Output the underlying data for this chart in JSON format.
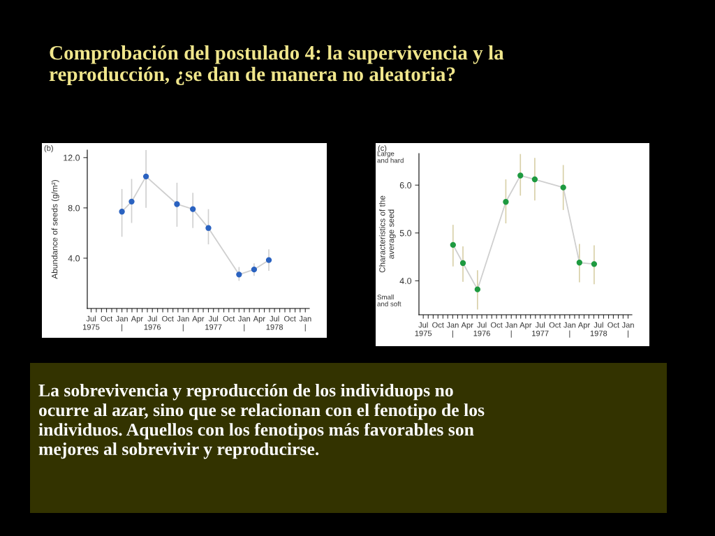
{
  "chart_data": [
    {
      "type": "line",
      "title": "(b)",
      "ylabel": "Abundance of seeds (g/m²)",
      "marker": "circle",
      "grid": false,
      "legend": false,
      "x": [
        "1976-01-01",
        "1976-02-28",
        "1976-05-24",
        "1976-11-25",
        "1977-02-28",
        "1977-06-01",
        "1977-12-01",
        "1978-03-01",
        "1978-05-28"
      ],
      "series": [
        {
          "color": "#2a62c0",
          "values": [
            7.7,
            8.5,
            10.5,
            8.3,
            7.9,
            6.4,
            2.7,
            3.1,
            3.85
          ],
          "errors": [
            [
              5.7,
              9.5
            ],
            [
              6.8,
              10.3
            ],
            [
              8.0,
              12.6
            ],
            [
              6.5,
              10.0
            ],
            [
              6.4,
              9.2
            ],
            [
              5.1,
              7.9
            ],
            [
              2.2,
              3.3
            ],
            [
              2.6,
              3.6
            ],
            [
              3.0,
              4.7
            ]
          ]
        }
      ],
      "xlim": [
        "1975-06-08",
        "1979-01-25"
      ],
      "ylim": [
        0,
        12.6
      ],
      "yticks": [
        {
          "value": 4,
          "label": "4.0"
        },
        {
          "value": 8,
          "label": "8.0"
        },
        {
          "value": 12,
          "label": "12.0"
        }
      ],
      "xticks": [
        {
          "value": "1975-07",
          "label": "Jul\n1975"
        },
        {
          "value": "1975-08",
          "label": null
        },
        {
          "value": "1975-09",
          "label": null
        },
        {
          "value": "1975-10",
          "label": "Oct"
        },
        {
          "value": "1975-11",
          "label": null
        },
        {
          "value": "1975-12",
          "label": null
        },
        {
          "value": "1976-01",
          "label": "Jan\n|"
        },
        {
          "value": "1976-02",
          "label": null
        },
        {
          "value": "1976-03",
          "label": null
        },
        {
          "value": "1976-04",
          "label": "Apr"
        },
        {
          "value": "1976-05",
          "label": null
        },
        {
          "value": "1976-06",
          "label": null
        },
        {
          "value": "1976-07",
          "label": "Jul\n1976"
        },
        {
          "value": "1976-08",
          "label": null
        },
        {
          "value": "1976-09",
          "label": null
        },
        {
          "value": "1976-10",
          "label": "Oct"
        },
        {
          "value": "1976-11",
          "label": null
        },
        {
          "value": "1976-12",
          "label": null
        },
        {
          "value": "1977-01",
          "label": "Jan\n|"
        },
        {
          "value": "1977-02",
          "label": null
        },
        {
          "value": "1977-03",
          "label": null
        },
        {
          "value": "1977-04",
          "label": "Apr"
        },
        {
          "value": "1977-05",
          "label": null
        },
        {
          "value": "1977-06",
          "label": null
        },
        {
          "value": "1977-07",
          "label": "Jul\n1977"
        },
        {
          "value": "1977-08",
          "label": null
        },
        {
          "value": "1977-09",
          "label": null
        },
        {
          "value": "1977-10",
          "label": "Oct"
        },
        {
          "value": "1977-11",
          "label": null
        },
        {
          "value": "1977-12",
          "label": null
        },
        {
          "value": "1978-01",
          "label": "Jan\n|"
        },
        {
          "value": "1978-02",
          "label": null
        },
        {
          "value": "1978-03",
          "label": null
        },
        {
          "value": "1978-04",
          "label": "Apr"
        },
        {
          "value": "1978-05",
          "label": null
        },
        {
          "value": "1978-06",
          "label": null
        },
        {
          "value": "1978-07",
          "label": "Jul\n1978"
        },
        {
          "value": "1978-08",
          "label": null
        },
        {
          "value": "1978-09",
          "label": null
        },
        {
          "value": "1978-10",
          "label": "Oct"
        },
        {
          "value": "1978-11",
          "label": null
        },
        {
          "value": "1978-12",
          "label": null
        },
        {
          "value": "1979-01",
          "label": "Jan\n|"
        }
      ]
    },
    {
      "type": "line",
      "title": "(c)",
      "ylabel": "Characteristics of the\naverage seed",
      "marker": "circle",
      "grid": false,
      "legend": false,
      "annotations": [
        "Large\nand hard",
        "Small\nand soft"
      ],
      "x": [
        "1976-01-03",
        "1976-03-05",
        "1976-06-04",
        "1976-11-28",
        "1977-02-27",
        "1977-05-28",
        "1977-11-22",
        "1978-03-03",
        "1978-06-03"
      ],
      "series": [
        {
          "color": "#1e9a40",
          "values": [
            4.75,
            4.37,
            3.82,
            5.65,
            6.2,
            6.12,
            5.95,
            4.38,
            4.35
          ],
          "errors": [
            [
              4.3,
              5.17
            ],
            [
              3.98,
              4.72
            ],
            [
              3.4,
              4.22
            ],
            [
              5.2,
              6.12
            ],
            [
              5.78,
              6.65
            ],
            [
              5.68,
              6.57
            ],
            [
              5.48,
              6.42
            ],
            [
              3.97,
              4.77
            ],
            [
              3.93,
              4.74
            ]
          ]
        }
      ],
      "xlim": [
        "1975-06-04",
        "1979-01-25"
      ],
      "ylim": [
        3.29,
        6.66
      ],
      "yticks": [
        {
          "value": 4,
          "label": "4.0"
        },
        {
          "value": 5,
          "label": "5.0"
        },
        {
          "value": 6,
          "label": "6.0"
        }
      ],
      "xticks": [
        {
          "value": "1975-07",
          "label": "Jul\n1975"
        },
        {
          "value": "1975-08",
          "label": null
        },
        {
          "value": "1975-09",
          "label": null
        },
        {
          "value": "1975-10",
          "label": "Oct"
        },
        {
          "value": "1975-11",
          "label": null
        },
        {
          "value": "1975-12",
          "label": null
        },
        {
          "value": "1976-01",
          "label": "Jan\n|"
        },
        {
          "value": "1976-02",
          "label": null
        },
        {
          "value": "1976-03",
          "label": null
        },
        {
          "value": "1976-04",
          "label": "Apr"
        },
        {
          "value": "1976-05",
          "label": null
        },
        {
          "value": "1976-06",
          "label": null
        },
        {
          "value": "1976-07",
          "label": "Jul\n1976"
        },
        {
          "value": "1976-08",
          "label": null
        },
        {
          "value": "1976-09",
          "label": null
        },
        {
          "value": "1976-10",
          "label": "Oct"
        },
        {
          "value": "1976-11",
          "label": null
        },
        {
          "value": "1976-12",
          "label": null
        },
        {
          "value": "1977-01",
          "label": "Jan\n|"
        },
        {
          "value": "1977-02",
          "label": null
        },
        {
          "value": "1977-03",
          "label": null
        },
        {
          "value": "1977-04",
          "label": "Apr"
        },
        {
          "value": "1977-05",
          "label": null
        },
        {
          "value": "1977-06",
          "label": null
        },
        {
          "value": "1977-07",
          "label": "Jul\n1977"
        },
        {
          "value": "1977-08",
          "label": null
        },
        {
          "value": "1977-09",
          "label": null
        },
        {
          "value": "1977-10",
          "label": "Oct"
        },
        {
          "value": "1977-11",
          "label": null
        },
        {
          "value": "1977-12",
          "label": null
        },
        {
          "value": "1978-01",
          "label": "Jan\n|"
        },
        {
          "value": "1978-02",
          "label": null
        },
        {
          "value": "1978-03",
          "label": null
        },
        {
          "value": "1978-04",
          "label": "Apr"
        },
        {
          "value": "1978-05",
          "label": null
        },
        {
          "value": "1978-06",
          "label": null
        },
        {
          "value": "1978-07",
          "label": "Jul\n1978"
        },
        {
          "value": "1978-08",
          "label": null
        },
        {
          "value": "1978-09",
          "label": null
        },
        {
          "value": "1978-10",
          "label": "Oct"
        },
        {
          "value": "1978-11",
          "label": null
        },
        {
          "value": "1978-12",
          "label": null
        },
        {
          "value": "1979-01",
          "label": "Jan\n|"
        }
      ]
    },
    {
      "type": "other",
      "title": "Comprobación del postulado 4: la supervivencia y la\nreproducción, ¿se dan de manera no aleatoria?",
      "annotations": [
        "La sobrevivencia y reproducción de los individuops no\nocurre al azar, sino que se relacionan con el fenotipo de los\nindividuos. Aquellos con los fenotipos más favorables son\nmejores al sobrevivir y reproducirse."
      ]
    }
  ]
}
